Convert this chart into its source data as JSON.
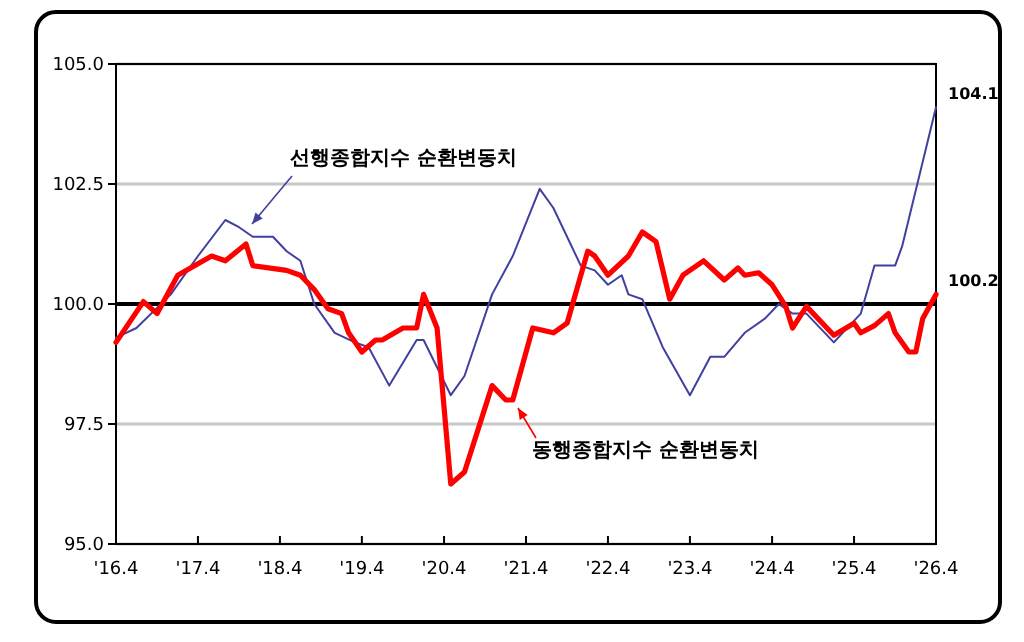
{
  "chart_data": {
    "type": "line",
    "xlim": [
      "2016-04",
      "2026-04"
    ],
    "ylim": [
      95,
      105
    ],
    "xticks": [
      {
        "value": "2016-04",
        "label": "'16.4"
      },
      {
        "value": "2017-04",
        "label": "'17.4"
      },
      {
        "value": "2018-04",
        "label": "'18.4"
      },
      {
        "value": "2019-04",
        "label": "'19.4"
      },
      {
        "value": "2020-04",
        "label": "'20.4"
      },
      {
        "value": "2021-04",
        "label": "'21.4"
      },
      {
        "value": "2022-04",
        "label": "'22.4"
      },
      {
        "value": "2023-04",
        "label": "'23.4"
      },
      {
        "value": "2024-04",
        "label": "'24.4"
      },
      {
        "value": "2025-04",
        "label": "'25.4"
      },
      {
        "value": "2026-04",
        "label": "'26.4"
      }
    ],
    "yticks": [
      {
        "value": 95,
        "label": "95.0"
      },
      {
        "value": 97.5,
        "label": "97.5"
      },
      {
        "value": 100,
        "label": "100.0"
      },
      {
        "value": 102.5,
        "label": "102.5"
      },
      {
        "value": 105,
        "label": "105.0"
      }
    ],
    "grid": "y",
    "marker": "none",
    "line_style": "solid",
    "ref_lines": [
      {
        "axis": "y",
        "value": 100,
        "color": "#000000"
      }
    ],
    "series": [
      {
        "name": "선행종합지수 순환변동치",
        "color": "#4040a0",
        "x": [
          "2016-04",
          "2016-07",
          "2016-12",
          "2017-04",
          "2017-08",
          "2017-10",
          "2017-12",
          "2018-03",
          "2018-05",
          "2018-07",
          "2018-09",
          "2018-12",
          "2019-03",
          "2019-05",
          "2019-08",
          "2019-12",
          "2020-01",
          "2020-05",
          "2020-07",
          "2020-11",
          "2021-02",
          "2021-06",
          "2021-08",
          "2021-12",
          "2022-02",
          "2022-04",
          "2022-06",
          "2022-07",
          "2022-09",
          "2022-12",
          "2023-04",
          "2023-07",
          "2023-09",
          "2023-12",
          "2024-03",
          "2024-05",
          "2024-07",
          "2024-09",
          "2025-01",
          "2025-05",
          "2025-07",
          "2025-10",
          "2025-11",
          "2026-04"
        ],
        "values": [
          99.3,
          99.5,
          100.2,
          101.0,
          101.75,
          101.6,
          101.4,
          101.4,
          101.1,
          100.9,
          100.0,
          99.4,
          99.2,
          99.1,
          98.3,
          99.25,
          99.25,
          98.1,
          98.5,
          100.2,
          101.0,
          102.4,
          102.0,
          100.8,
          100.7,
          100.4,
          100.6,
          100.2,
          100.1,
          99.1,
          98.1,
          98.9,
          98.9,
          99.4,
          99.7,
          100.0,
          99.8,
          99.8,
          99.2,
          99.8,
          100.8,
          100.8,
          101.2,
          104.1
        ],
        "value_labels": [
          null,
          null,
          null,
          null,
          null,
          null,
          null,
          null,
          null,
          null,
          null,
          null,
          null,
          null,
          null,
          null,
          null,
          null,
          null,
          null,
          null,
          null,
          null,
          null,
          null,
          null,
          null,
          null,
          null,
          null,
          null,
          null,
          null,
          null,
          null,
          null,
          null,
          null,
          null,
          null,
          null,
          null,
          null,
          "104.1"
        ]
      },
      {
        "name": "동행종합지수 순환변동치",
        "color": "#ff0000",
        "x": [
          "2016-04",
          "2016-08",
          "2016-10",
          "2017-01",
          "2017-06",
          "2017-08",
          "2017-11",
          "2017-12",
          "2018-05",
          "2018-07",
          "2018-09",
          "2018-11",
          "2019-01",
          "2019-02",
          "2019-04",
          "2019-06",
          "2019-07",
          "2019-10",
          "2019-12",
          "2020-01",
          "2020-03",
          "2020-05",
          "2020-07",
          "2020-11",
          "2021-01",
          "2021-02",
          "2021-05",
          "2021-08",
          "2021-10",
          "2022-01",
          "2022-02",
          "2022-04",
          "2022-07",
          "2022-09",
          "2022-11",
          "2023-01",
          "2023-03",
          "2023-06",
          "2023-09",
          "2023-11",
          "2023-12",
          "2024-02",
          "2024-04",
          "2024-06",
          "2024-07",
          "2024-09",
          "2025-01",
          "2025-04",
          "2025-05",
          "2025-07",
          "2025-09",
          "2025-10",
          "2025-12",
          "2026-01",
          "2026-02",
          "2026-04"
        ],
        "values": [
          99.2,
          100.05,
          99.8,
          100.6,
          101.0,
          100.9,
          101.25,
          100.8,
          100.7,
          100.6,
          100.3,
          99.9,
          99.8,
          99.4,
          99.0,
          99.25,
          99.25,
          99.5,
          99.5,
          100.2,
          99.5,
          96.25,
          96.5,
          98.3,
          98.0,
          98.0,
          99.5,
          99.4,
          99.6,
          101.1,
          101.0,
          100.6,
          101.0,
          101.5,
          101.3,
          100.1,
          100.6,
          100.9,
          100.5,
          100.75,
          100.6,
          100.65,
          100.4,
          99.95,
          99.5,
          99.95,
          99.35,
          99.6,
          99.4,
          99.55,
          99.8,
          99.4,
          99.0,
          99.0,
          99.7,
          100.2
        ],
        "value_labels": [
          null,
          null,
          null,
          null,
          null,
          null,
          null,
          null,
          null,
          null,
          null,
          null,
          null,
          null,
          null,
          null,
          null,
          null,
          null,
          null,
          null,
          null,
          null,
          null,
          null,
          null,
          null,
          null,
          null,
          null,
          null,
          null,
          null,
          null,
          null,
          null,
          null,
          null,
          null,
          null,
          null,
          null,
          null,
          null,
          null,
          null,
          null,
          null,
          null,
          null,
          null,
          null,
          null,
          null,
          null,
          "100.2"
        ]
      }
    ]
  }
}
